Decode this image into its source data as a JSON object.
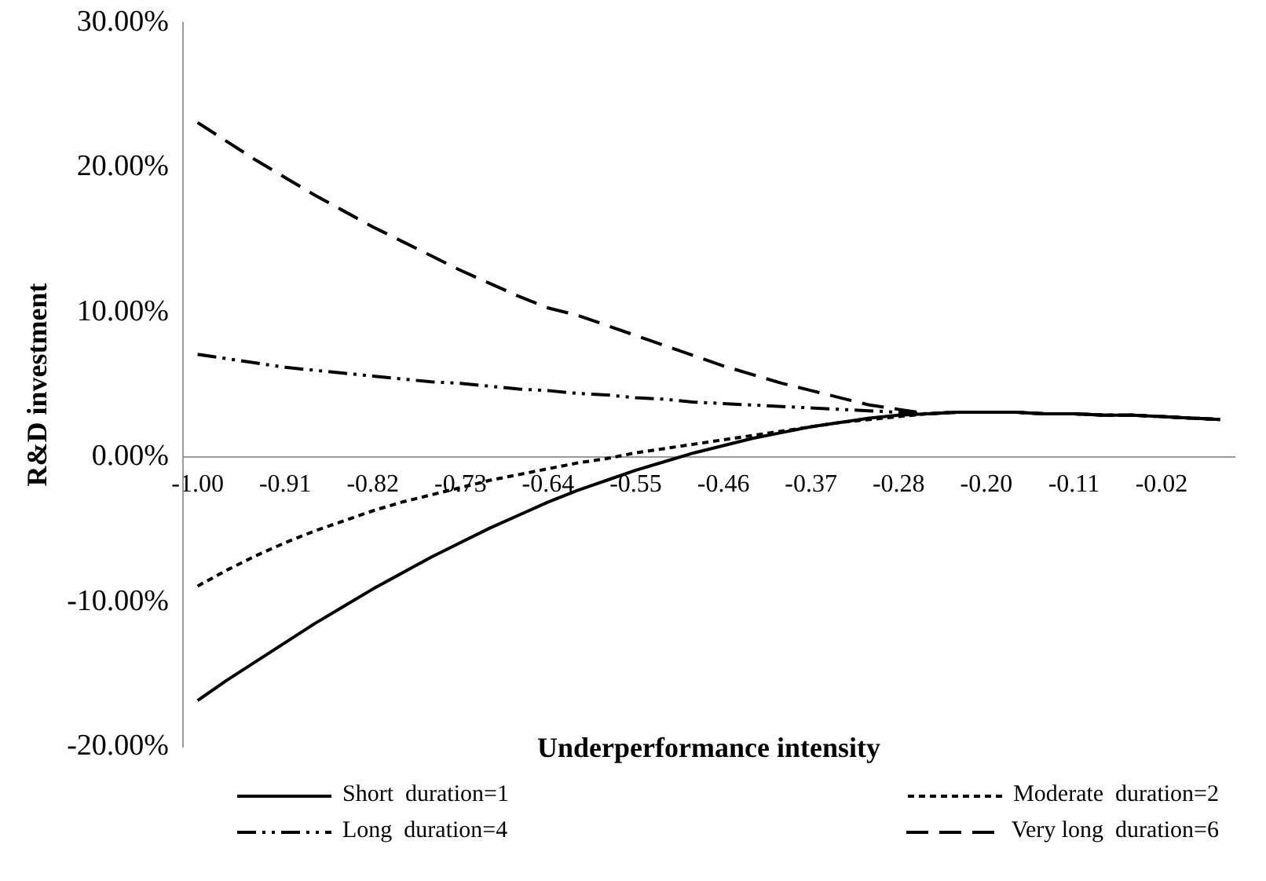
{
  "chart_data": {
    "type": "line",
    "xlabel": "Underperformance intensity",
    "ylabel": "R&D investment",
    "categories": [
      "-1.00",
      null,
      null,
      "-0.91",
      null,
      null,
      "-0.82",
      null,
      null,
      "-0.73",
      null,
      null,
      "-0.64",
      null,
      null,
      "-0.55",
      null,
      null,
      "-0.46",
      null,
      null,
      "-0.37",
      null,
      null,
      "-0.28",
      null,
      null,
      "-0.20",
      null,
      null,
      "-0.11",
      null,
      null,
      "-0.02",
      null,
      null
    ],
    "series": [
      {
        "name": "Short  duration=1",
        "color": "#000000",
        "line_style": "solid",
        "values": [
          -16.8,
          -15.4,
          -14.1,
          -12.8,
          -11.5,
          -10.3,
          -9.1,
          -8.0,
          -6.9,
          -5.9,
          -4.9,
          -4.0,
          -3.1,
          -2.3,
          -1.6,
          -0.9,
          -0.3,
          0.3,
          0.8,
          1.3,
          1.7,
          2.1,
          2.4,
          2.7,
          2.9,
          3.0,
          3.1,
          3.1,
          3.1,
          3.0,
          3.0,
          2.9,
          2.9,
          2.8,
          2.7,
          2.6
        ]
      },
      {
        "name": "Moderate  duration=2",
        "color": "#000000",
        "line_style": "dotted",
        "values": [
          -8.9,
          -7.8,
          -6.8,
          -5.9,
          -5.1,
          -4.4,
          -3.7,
          -3.1,
          -2.6,
          -2.1,
          -1.6,
          -1.2,
          -0.8,
          -0.4,
          -0.1,
          0.3,
          0.6,
          0.9,
          1.2,
          1.5,
          1.8,
          2.1,
          2.4,
          2.6,
          2.8,
          3.0,
          3.1,
          3.1,
          3.1,
          3.0,
          3.0,
          2.9,
          2.9,
          2.8,
          2.7,
          2.6
        ]
      },
      {
        "name": "Long  duration=4",
        "color": "#000000",
        "line_style": "dashdot",
        "values": [
          7.1,
          6.8,
          6.5,
          6.2,
          6.0,
          5.8,
          5.6,
          5.4,
          5.2,
          5.1,
          4.9,
          4.7,
          4.6,
          4.4,
          4.3,
          4.1,
          4.0,
          3.8,
          3.7,
          3.6,
          3.5,
          3.4,
          3.3,
          3.2,
          3.1,
          3.0,
          3.1,
          3.1,
          3.1,
          3.0,
          3.0,
          2.9,
          2.9,
          2.8,
          2.7,
          2.6
        ]
      },
      {
        "name": "Very long  duration=6",
        "color": "#000000",
        "line_style": "dashed",
        "values": [
          23.1,
          21.8,
          20.5,
          19.3,
          18.1,
          17.0,
          15.9,
          14.9,
          13.9,
          12.9,
          12.0,
          11.1,
          10.3,
          9.8,
          9.1,
          8.4,
          7.7,
          7.0,
          6.3,
          5.7,
          5.1,
          4.6,
          4.1,
          3.6,
          3.3,
          3.0,
          3.1,
          3.1,
          3.1,
          3.0,
          3.0,
          2.9,
          2.9,
          2.8,
          2.7,
          2.6
        ]
      }
    ],
    "ylim": [
      -20,
      30
    ],
    "yticks": [
      {
        "value": -20,
        "label": "-20.00%"
      },
      {
        "value": -10,
        "label": "-10.00%"
      },
      {
        "value": 0,
        "label": "0.00%"
      },
      {
        "value": 10,
        "label": "10.00%"
      },
      {
        "value": 20,
        "label": "20.00%"
      },
      {
        "value": 30,
        "label": "30.00%"
      }
    ],
    "grid": false,
    "legend": "bottom",
    "marker": "none"
  }
}
